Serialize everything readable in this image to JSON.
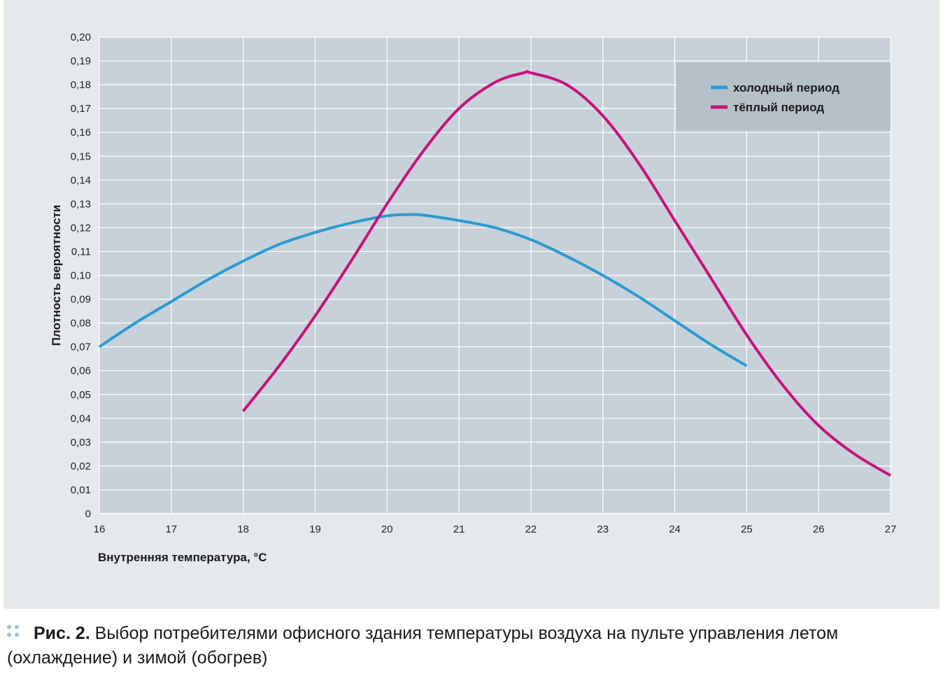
{
  "chart_data": {
    "type": "line",
    "xlabel": "Внутренняя температура, °С",
    "ylabel": "Плотность вероятности",
    "xlim": [
      16,
      27
    ],
    "ylim": [
      0,
      0.2
    ],
    "x_ticks": [
      "16",
      "17",
      "18",
      "19",
      "20",
      "21",
      "22",
      "23",
      "24",
      "25",
      "26",
      "27"
    ],
    "y_ticks": [
      "0",
      "0,01",
      "0,02",
      "0,03",
      "0,04",
      "0,05",
      "0,06",
      "0,07",
      "0,08",
      "0,09",
      "0,10",
      "0,11",
      "0,12",
      "0,13",
      "0,14",
      "0,15",
      "0,16",
      "0,17",
      "0,18",
      "0,19",
      "0,20"
    ],
    "grid": true,
    "legend_position": "top-right",
    "series": [
      {
        "name": "холодный период",
        "color": "#2b9bd1",
        "x": [
          16,
          16.5,
          17,
          17.5,
          18,
          18.5,
          19,
          19.5,
          20,
          20.3,
          20.5,
          21,
          21.5,
          22,
          22.5,
          23,
          23.5,
          24,
          24.5,
          25
        ],
        "y": [
          0.07,
          0.08,
          0.089,
          0.098,
          0.106,
          0.113,
          0.118,
          0.122,
          0.125,
          0.1255,
          0.1253,
          0.123,
          0.12,
          0.115,
          0.108,
          0.1,
          0.091,
          0.081,
          0.071,
          0.062
        ]
      },
      {
        "name": "тёплый период",
        "color": "#c8127c",
        "x": [
          18,
          18.5,
          19,
          19.5,
          20,
          20.5,
          21,
          21.5,
          21.9,
          22,
          22.5,
          23,
          23.5,
          24,
          24.5,
          25,
          25.5,
          26,
          26.5,
          27
        ],
        "y": [
          0.043,
          0.062,
          0.083,
          0.106,
          0.13,
          0.152,
          0.17,
          0.181,
          0.185,
          0.185,
          0.18,
          0.167,
          0.147,
          0.123,
          0.099,
          0.075,
          0.054,
          0.037,
          0.025,
          0.016
        ]
      }
    ]
  },
  "caption": {
    "label": "Рис. 2.",
    "text": " Выбор потребителями офисного здания температуры воздуха на пульте управления летом (охлаждение) и зимой (обогрев)"
  }
}
